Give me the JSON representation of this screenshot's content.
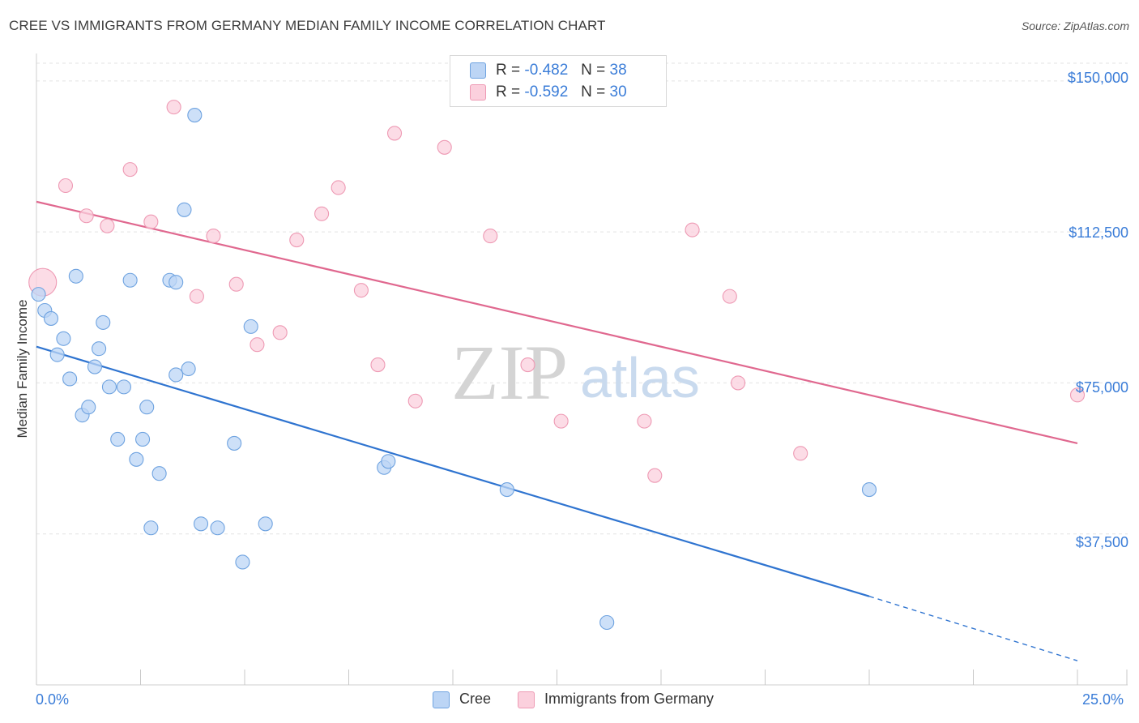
{
  "title": "CREE VS IMMIGRANTS FROM GERMANY MEDIAN FAMILY INCOME CORRELATION CHART",
  "source": "Source: ZipAtlas.com",
  "watermark": {
    "zip": "ZIP",
    "atlas": "atlas"
  },
  "colors": {
    "cree_fill": "#bcd5f5",
    "cree_stroke": "#6fa3e0",
    "cree_line": "#2f74d0",
    "germany_fill": "#fbd0dd",
    "germany_stroke": "#ee9ab4",
    "germany_line": "#e0688f",
    "tick_label": "#3b7dd8",
    "grid": "#e3e3e3"
  },
  "legend": {
    "rows": [
      {
        "r_label": "R =",
        "r_value": "-0.482",
        "n_label": "N =",
        "n_value": "38"
      },
      {
        "r_label": "R =",
        "r_value": "-0.592",
        "n_label": "N =",
        "n_value": "30"
      }
    ]
  },
  "chart_data": {
    "type": "scatter",
    "xlabel": "",
    "ylabel": "Median Family Income",
    "xlim": [
      0,
      25
    ],
    "ylim": [
      0,
      155000
    ],
    "x_tick_labels": [
      "0.0%",
      "25.0%"
    ],
    "y_ticks": [
      37500,
      75000,
      112500,
      150000
    ],
    "y_tick_labels": [
      "$37,500",
      "$75,000",
      "$112,500",
      "$150,000"
    ],
    "grid": true,
    "legend_position": "bottom",
    "series": [
      {
        "name": "Cree",
        "r": -0.482,
        "n": 38,
        "trend": {
          "x0": 0,
          "y0": 84000,
          "x1": 20,
          "y1": 22000,
          "dash_x1": 25,
          "dash_y1": 6000
        },
        "points": [
          {
            "x": 0.05,
            "y": 97000,
            "big": false
          },
          {
            "x": 0.2,
            "y": 93000,
            "big": false
          },
          {
            "x": 0.35,
            "y": 91000,
            "big": false
          },
          {
            "x": 0.5,
            "y": 82000,
            "big": false
          },
          {
            "x": 0.65,
            "y": 86000,
            "big": false
          },
          {
            "x": 0.8,
            "y": 76000,
            "big": false
          },
          {
            "x": 0.95,
            "y": 101500,
            "big": false
          },
          {
            "x": 1.1,
            "y": 67000,
            "big": false
          },
          {
            "x": 1.25,
            "y": 69000,
            "big": false
          },
          {
            "x": 1.4,
            "y": 79000,
            "big": false
          },
          {
            "x": 1.5,
            "y": 83500,
            "big": false
          },
          {
            "x": 1.6,
            "y": 90000,
            "big": false
          },
          {
            "x": 1.75,
            "y": 74000,
            "big": false
          },
          {
            "x": 1.95,
            "y": 61000,
            "big": false
          },
          {
            "x": 2.1,
            "y": 74000,
            "big": false
          },
          {
            "x": 2.25,
            "y": 100500,
            "big": false
          },
          {
            "x": 2.4,
            "y": 56000,
            "big": false
          },
          {
            "x": 2.55,
            "y": 61000,
            "big": false
          },
          {
            "x": 2.65,
            "y": 69000,
            "big": false
          },
          {
            "x": 2.75,
            "y": 39000,
            "big": false
          },
          {
            "x": 2.95,
            "y": 52500,
            "big": false
          },
          {
            "x": 3.2,
            "y": 100500,
            "big": false
          },
          {
            "x": 3.35,
            "y": 100000,
            "big": false
          },
          {
            "x": 3.35,
            "y": 77000,
            "big": false
          },
          {
            "x": 3.55,
            "y": 118000,
            "big": false
          },
          {
            "x": 3.65,
            "y": 78500,
            "big": false
          },
          {
            "x": 3.8,
            "y": 141500,
            "big": false
          },
          {
            "x": 3.95,
            "y": 40000,
            "big": false
          },
          {
            "x": 4.35,
            "y": 39000,
            "big": false
          },
          {
            "x": 4.75,
            "y": 60000,
            "big": false
          },
          {
            "x": 4.95,
            "y": 30500,
            "big": false
          },
          {
            "x": 5.15,
            "y": 89000,
            "big": false
          },
          {
            "x": 5.5,
            "y": 40000,
            "big": false
          },
          {
            "x": 8.35,
            "y": 54000,
            "big": false
          },
          {
            "x": 8.45,
            "y": 55500,
            "big": false
          },
          {
            "x": 11.3,
            "y": 48500,
            "big": false
          },
          {
            "x": 13.7,
            "y": 15500,
            "big": false
          },
          {
            "x": 20.0,
            "y": 48500,
            "big": false
          }
        ]
      },
      {
        "name": "Immigrants from Germany",
        "r": -0.592,
        "n": 30,
        "trend": {
          "x0": 0,
          "y0": 120000,
          "x1": 25,
          "y1": 60000
        },
        "points": [
          {
            "x": 0.15,
            "y": 100000,
            "big": true
          },
          {
            "x": 0.7,
            "y": 124000,
            "big": false
          },
          {
            "x": 1.2,
            "y": 116500,
            "big": false
          },
          {
            "x": 1.7,
            "y": 114000,
            "big": false
          },
          {
            "x": 2.25,
            "y": 128000,
            "big": false
          },
          {
            "x": 2.75,
            "y": 115000,
            "big": false
          },
          {
            "x": 3.3,
            "y": 143500,
            "big": false
          },
          {
            "x": 3.85,
            "y": 96500,
            "big": false
          },
          {
            "x": 4.25,
            "y": 111500,
            "big": false
          },
          {
            "x": 4.8,
            "y": 99500,
            "big": false
          },
          {
            "x": 5.3,
            "y": 84500,
            "big": false
          },
          {
            "x": 5.85,
            "y": 87500,
            "big": false
          },
          {
            "x": 6.25,
            "y": 110500,
            "big": false
          },
          {
            "x": 6.85,
            "y": 117000,
            "big": false
          },
          {
            "x": 7.25,
            "y": 123500,
            "big": false
          },
          {
            "x": 7.8,
            "y": 98000,
            "big": false
          },
          {
            "x": 8.2,
            "y": 79500,
            "big": false
          },
          {
            "x": 8.6,
            "y": 137000,
            "big": false
          },
          {
            "x": 9.1,
            "y": 70500,
            "big": false
          },
          {
            "x": 9.8,
            "y": 133500,
            "big": false
          },
          {
            "x": 10.9,
            "y": 111500,
            "big": false
          },
          {
            "x": 11.8,
            "y": 79500,
            "big": false
          },
          {
            "x": 12.6,
            "y": 65500,
            "big": false
          },
          {
            "x": 14.6,
            "y": 65500,
            "big": false
          },
          {
            "x": 14.85,
            "y": 52000,
            "big": false
          },
          {
            "x": 15.75,
            "y": 113000,
            "big": false
          },
          {
            "x": 16.65,
            "y": 96500,
            "big": false
          },
          {
            "x": 16.85,
            "y": 75000,
            "big": false
          },
          {
            "x": 18.35,
            "y": 57500,
            "big": false
          },
          {
            "x": 25.0,
            "y": 72000,
            "big": false
          }
        ]
      }
    ]
  }
}
